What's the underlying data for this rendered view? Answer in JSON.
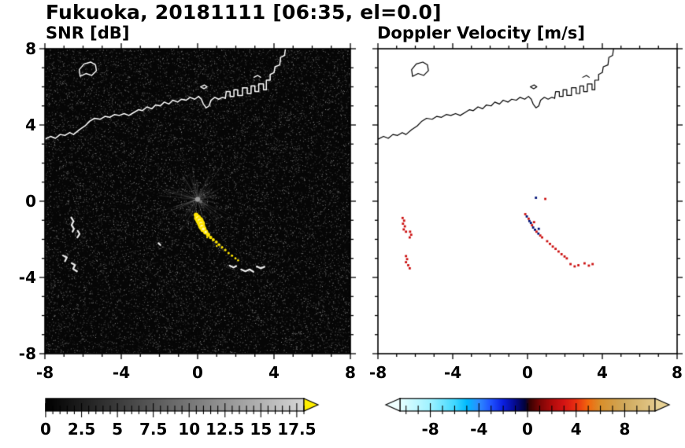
{
  "header": {
    "title": "Fukuoka, 20181111 [06:35, el=0.0]"
  },
  "chart_data": [
    {
      "type": "heatmap",
      "title": "SNR [dB]",
      "xlabel": "",
      "ylabel": "",
      "xlim": [
        -8,
        8
      ],
      "ylim": [
        -8,
        8
      ],
      "xticks": [
        "-8",
        "-4",
        "0",
        "4",
        "8"
      ],
      "xtick_values": [
        -8,
        -4,
        0,
        4,
        8
      ],
      "yticks": [
        "8",
        "4",
        "0",
        "-4",
        "-8"
      ],
      "ytick_values": [
        8,
        4,
        0,
        -4,
        -8
      ],
      "minor_tick_step": 1,
      "background_color": "#060606",
      "description": "Radar SNR field over Hakata Bay, Fukuoka: dark low-SNR speckle noise across the domain, radar site at the origin with faint radial spokes, a strong yellow echo streak extending from about (0,-0.8) to (2.1,-3.1), bright white clutter patches near (-6.6,-1.3), (-6.8,-3.0), (-6.4,-3.5) and along (1.7,-3.4) to (3.5,-3.4); coastline drawn in white",
      "features": {
        "radar_center": [
          0,
          0
        ],
        "yellow_echo": [
          [
            -0.08,
            -0.72,
            3
          ],
          [
            0.0,
            -0.88,
            4.5
          ],
          [
            0.1,
            -1.02,
            5
          ],
          [
            0.18,
            -1.18,
            5
          ],
          [
            0.22,
            -1.32,
            4.5
          ],
          [
            0.3,
            -1.46,
            4
          ],
          [
            0.42,
            -1.62,
            3.2
          ],
          [
            0.55,
            -1.76,
            2.6
          ],
          [
            0.68,
            -1.9,
            2.2
          ],
          [
            0.82,
            -2.02,
            2
          ],
          [
            0.98,
            -2.14,
            1.8
          ],
          [
            1.12,
            -2.28,
            1.8
          ],
          [
            1.28,
            -2.42,
            1.6
          ],
          [
            1.45,
            -2.56,
            1.6
          ],
          [
            1.62,
            -2.72,
            1.5
          ],
          [
            1.8,
            -2.86,
            1.5
          ],
          [
            1.98,
            -3.0,
            1.4
          ],
          [
            2.12,
            -3.1,
            1.3
          ],
          [
            0.5,
            -1.9,
            1.2
          ],
          [
            1.0,
            -2.35,
            1.2
          ]
        ],
        "white_clutter": [
          [
            [
              -6.62,
              -0.85
            ],
            [
              -6.5,
              -1.05
            ],
            [
              -6.6,
              -1.25
            ],
            [
              -6.48,
              -1.45
            ],
            [
              -6.55,
              -1.6
            ]
          ],
          [
            [
              -6.28,
              -1.55
            ],
            [
              -6.18,
              -1.72
            ],
            [
              -6.3,
              -1.9
            ]
          ],
          [
            [
              -7.05,
              -2.85
            ],
            [
              -6.85,
              -2.95
            ],
            [
              -6.95,
              -3.15
            ]
          ],
          [
            [
              -6.6,
              -3.25
            ],
            [
              -6.42,
              -3.35
            ],
            [
              -6.52,
              -3.55
            ],
            [
              -6.32,
              -3.68
            ]
          ],
          [
            [
              1.68,
              -3.38
            ],
            [
              1.88,
              -3.48
            ],
            [
              2.02,
              -3.4
            ]
          ],
          [
            [
              2.28,
              -3.58
            ],
            [
              2.5,
              -3.68
            ],
            [
              2.72,
              -3.58
            ],
            [
              2.92,
              -3.7
            ]
          ],
          [
            [
              3.1,
              -3.42
            ],
            [
              3.3,
              -3.52
            ],
            [
              3.5,
              -3.44
            ]
          ],
          [
            [
              -2.05,
              -2.2
            ],
            [
              -1.95,
              -2.3
            ]
          ]
        ]
      },
      "colorbar": {
        "min": 0,
        "max": 18,
        "tick_labels": [
          "0",
          "2.5",
          "5",
          "7.5",
          "10",
          "12.5",
          "15",
          "17.5"
        ],
        "tick_values": [
          0,
          2.5,
          5,
          7.5,
          10,
          12.5,
          15,
          17.5
        ],
        "minor_step": 0.5,
        "start_color": "#000000",
        "end_color": "#d6d6d6",
        "over_arrow_color": "#ffef00"
      }
    },
    {
      "type": "scatter",
      "title": "Doppler Velocity [m/s]",
      "xlabel": "",
      "ylabel": "",
      "xlim": [
        -8,
        8
      ],
      "ylim": [
        -8,
        8
      ],
      "xticks": [
        "-8",
        "-4",
        "0",
        "4",
        "8"
      ],
      "xtick_values": [
        -8,
        -4,
        0,
        4,
        8
      ],
      "yticks": [],
      "ytick_values": [
        8,
        4,
        0,
        -4,
        -8
      ],
      "minor_tick_step": 1,
      "background_color": "#ffffff",
      "description": "Doppler velocity of detected echoes only: mixed positive (red) and negative (navy) velocities in the main echo near (0.3,-1.3), positive-velocity (red) streak toward (2.1,-3.0), red clutter returns near (-6.6,-1.3), (-6.4,-3.2) and (2.3,-3.3) to (3.5,-3.3); coastline drawn in black",
      "points_colors": {
        "r": "#cc1111",
        "n": "#001177"
      },
      "points": [
        [
          -6.68,
          -0.88,
          "r"
        ],
        [
          -6.6,
          -1.02,
          "r"
        ],
        [
          -6.66,
          -1.18,
          "r"
        ],
        [
          -6.56,
          -1.32,
          "r"
        ],
        [
          -6.62,
          -1.48,
          "r"
        ],
        [
          -6.5,
          -1.6,
          "r"
        ],
        [
          -6.28,
          -1.6,
          "r"
        ],
        [
          -6.22,
          -1.76,
          "r"
        ],
        [
          -6.3,
          -1.9,
          "r"
        ],
        [
          -6.5,
          -2.88,
          "r"
        ],
        [
          -6.44,
          -3.04,
          "r"
        ],
        [
          -6.5,
          -3.2,
          "r"
        ],
        [
          -6.38,
          -3.36,
          "r"
        ],
        [
          -6.3,
          -3.52,
          "r"
        ],
        [
          -0.12,
          -0.68,
          "r"
        ],
        [
          -0.04,
          -0.8,
          "n"
        ],
        [
          0.06,
          -0.92,
          "r"
        ],
        [
          0.1,
          -1.04,
          "n"
        ],
        [
          0.18,
          -1.14,
          "n"
        ],
        [
          0.24,
          -1.26,
          "r"
        ],
        [
          0.3,
          -1.38,
          "n"
        ],
        [
          0.4,
          -1.5,
          "n"
        ],
        [
          0.48,
          -1.6,
          "r"
        ],
        [
          0.58,
          -1.7,
          "n"
        ],
        [
          0.68,
          -1.8,
          "r"
        ],
        [
          0.78,
          -1.9,
          "r"
        ],
        [
          0.6,
          -1.45,
          "n"
        ],
        [
          0.35,
          -1.1,
          "r"
        ],
        [
          1.05,
          -2.1,
          "r"
        ],
        [
          1.2,
          -2.24,
          "r"
        ],
        [
          1.35,
          -2.38,
          "r"
        ],
        [
          1.5,
          -2.5,
          "r"
        ],
        [
          1.66,
          -2.64,
          "r"
        ],
        [
          1.82,
          -2.78,
          "r"
        ],
        [
          1.98,
          -2.9,
          "r"
        ],
        [
          2.1,
          -3.0,
          "r"
        ],
        [
          2.3,
          -3.3,
          "r"
        ],
        [
          2.52,
          -3.42,
          "r"
        ],
        [
          2.72,
          -3.36,
          "r"
        ],
        [
          3.05,
          -3.26,
          "r"
        ],
        [
          3.28,
          -3.38,
          "r"
        ],
        [
          3.48,
          -3.3,
          "r"
        ],
        [
          0.45,
          0.18,
          "n"
        ],
        [
          0.95,
          0.12,
          "r"
        ]
      ],
      "colorbar": {
        "min": -10.5,
        "max": 10.5,
        "tick_labels": [
          "-8",
          "-4",
          "0",
          "4",
          "8"
        ],
        "tick_values": [
          -8,
          -4,
          0,
          4,
          8
        ],
        "minor_step": 1,
        "stops": [
          [
            -10.5,
            "#e6ffff"
          ],
          [
            -8,
            "#9ef2ff"
          ],
          [
            -6,
            "#40d8ff"
          ],
          [
            -5,
            "#00baff"
          ],
          [
            -4,
            "#2e8bff"
          ],
          [
            -3,
            "#1f52ff"
          ],
          [
            -2,
            "#0b1fe0"
          ],
          [
            -1,
            "#050a8c"
          ],
          [
            -0.2,
            "#02023a"
          ],
          [
            0.2,
            "#3a0202"
          ],
          [
            1,
            "#7a0606"
          ],
          [
            2,
            "#b00b0b"
          ],
          [
            3,
            "#d41414"
          ],
          [
            4,
            "#e93011"
          ],
          [
            5,
            "#f2680e"
          ],
          [
            6,
            "#d98f2b"
          ],
          [
            8,
            "#cfa95c"
          ],
          [
            10.5,
            "#e3c98b"
          ]
        ],
        "under_arrow_color": "#f0ffff",
        "over_arrow_color": "#e7d194"
      }
    }
  ],
  "map": {
    "coastline_main": [
      [
        -8,
        3.25
      ],
      [
        -7.7,
        3.4
      ],
      [
        -7.45,
        3.3
      ],
      [
        -7.2,
        3.5
      ],
      [
        -6.95,
        3.45
      ],
      [
        -6.7,
        3.6
      ],
      [
        -6.5,
        3.5
      ],
      [
        -6.2,
        3.75
      ],
      [
        -5.9,
        3.95
      ],
      [
        -5.65,
        4.2
      ],
      [
        -5.4,
        4.35
      ],
      [
        -5.1,
        4.3
      ],
      [
        -4.85,
        4.45
      ],
      [
        -4.6,
        4.4
      ],
      [
        -4.35,
        4.55
      ],
      [
        -4.1,
        4.5
      ],
      [
        -3.85,
        4.6
      ],
      [
        -3.6,
        4.5
      ],
      [
        -3.35,
        4.65
      ],
      [
        -3.1,
        4.8
      ],
      [
        -2.9,
        4.75
      ],
      [
        -2.65,
        4.95
      ],
      [
        -2.4,
        4.85
      ],
      [
        -2.2,
        5.05
      ],
      [
        -1.95,
        5.0
      ],
      [
        -1.75,
        5.2
      ],
      [
        -1.5,
        5.1
      ],
      [
        -1.3,
        5.3
      ],
      [
        -1.05,
        5.2
      ],
      [
        -0.85,
        5.35
      ],
      [
        -0.6,
        5.3
      ],
      [
        -0.4,
        5.45
      ],
      [
        -0.15,
        5.35
      ],
      [
        0.05,
        5.5
      ],
      [
        0.2,
        5.35
      ],
      [
        0.3,
        5.1
      ],
      [
        0.45,
        4.9
      ],
      [
        0.6,
        5.0
      ],
      [
        0.7,
        5.3
      ],
      [
        0.9,
        5.45
      ],
      [
        1.1,
        5.35
      ],
      [
        1.3,
        5.45
      ],
      [
        1.45,
        5.4
      ]
    ],
    "coastline_port": [
      [
        1.45,
        5.4
      ],
      [
        1.5,
        5.75
      ],
      [
        1.7,
        5.75
      ],
      [
        1.7,
        5.5
      ],
      [
        1.9,
        5.5
      ],
      [
        1.9,
        5.85
      ],
      [
        2.1,
        5.85
      ],
      [
        2.1,
        5.55
      ],
      [
        2.35,
        5.55
      ],
      [
        2.35,
        5.95
      ],
      [
        2.6,
        5.95
      ],
      [
        2.6,
        5.65
      ],
      [
        2.8,
        5.65
      ],
      [
        2.8,
        6.05
      ],
      [
        3.0,
        6.05
      ],
      [
        3.0,
        5.75
      ],
      [
        3.2,
        5.75
      ],
      [
        3.2,
        6.15
      ],
      [
        3.45,
        6.15
      ],
      [
        3.45,
        5.85
      ],
      [
        3.6,
        5.85
      ],
      [
        3.6,
        6.35
      ],
      [
        3.8,
        6.35
      ],
      [
        3.8,
        6.65
      ],
      [
        4.0,
        6.75
      ],
      [
        4.05,
        7.05
      ],
      [
        4.3,
        7.15
      ],
      [
        4.35,
        7.55
      ],
      [
        4.55,
        7.65
      ],
      [
        4.6,
        8.0
      ]
    ],
    "island": [
      [
        -6.15,
        6.55
      ],
      [
        -5.85,
        6.7
      ],
      [
        -5.55,
        6.6
      ],
      [
        -5.3,
        6.85
      ],
      [
        -5.35,
        7.15
      ],
      [
        -5.6,
        7.3
      ],
      [
        -5.95,
        7.2
      ],
      [
        -6.2,
        6.9
      ],
      [
        -6.15,
        6.55
      ]
    ],
    "islet": [
      [
        0.15,
        6.0
      ],
      [
        0.35,
        6.1
      ],
      [
        0.5,
        6.0
      ],
      [
        0.33,
        5.9
      ],
      [
        0.15,
        6.0
      ]
    ],
    "pier": [
      [
        2.95,
        6.5
      ],
      [
        3.15,
        6.6
      ],
      [
        3.3,
        6.5
      ]
    ]
  }
}
